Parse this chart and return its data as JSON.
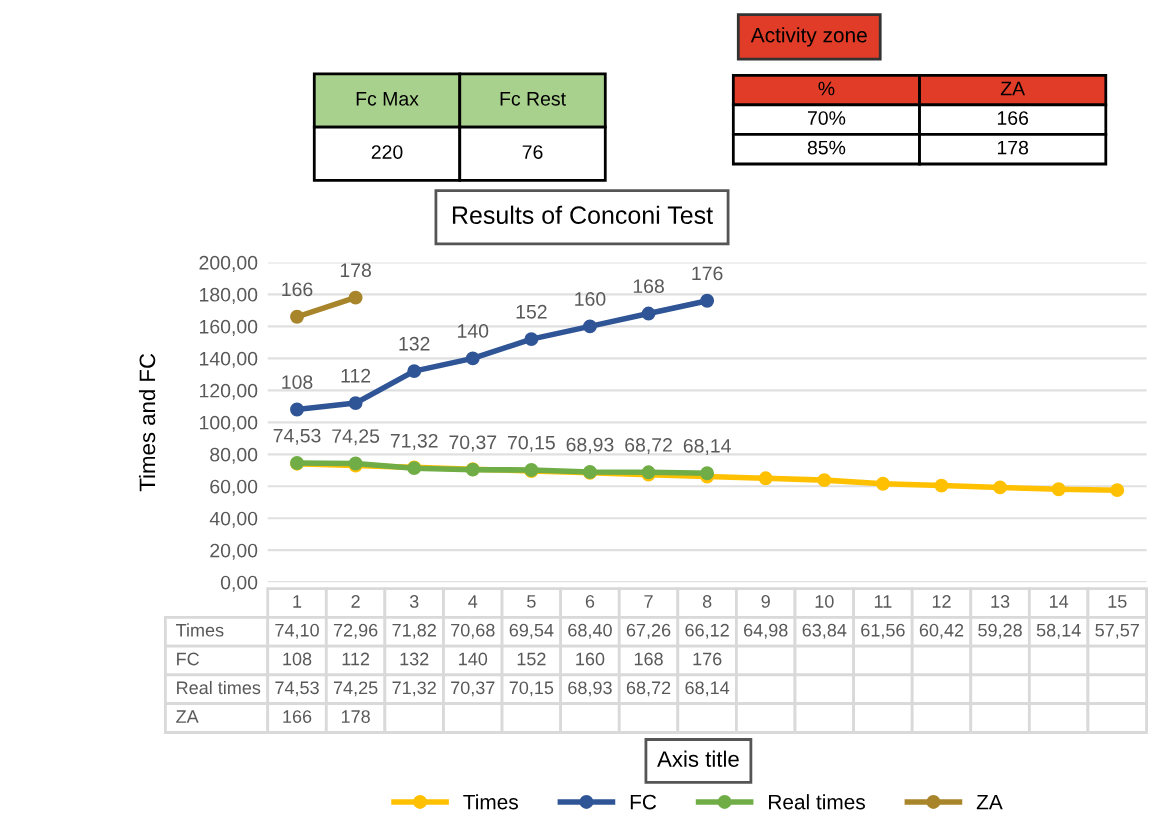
{
  "chart_data": {
    "type": "line",
    "title": "Results of Conconi Test",
    "ylabel": "Times and FC",
    "categories": [
      "1",
      "2",
      "3",
      "4",
      "5",
      "6",
      "7",
      "8",
      "9",
      "10",
      "11",
      "12",
      "13",
      "14",
      "15"
    ],
    "series": [
      {
        "name": "Times",
        "color": "#ffc000",
        "values": [
          74.1,
          72.96,
          71.82,
          70.68,
          69.54,
          68.4,
          67.26,
          66.12,
          64.98,
          63.84,
          61.56,
          60.42,
          59.28,
          58.14,
          57.57
        ],
        "value_labels": [
          "74,10",
          "72,96",
          "71,82",
          "70,68",
          "69,54",
          "68,40",
          "67,26",
          "66,12",
          "64,98",
          "63,84",
          "61,56",
          "60,42",
          "59,28",
          "58,14",
          "57,57"
        ]
      },
      {
        "name": "FC",
        "color": "#2f5597",
        "values": [
          108,
          112,
          132,
          140,
          152,
          160,
          168,
          176,
          null,
          null,
          null,
          null,
          null,
          null,
          null
        ],
        "value_labels": [
          "108",
          "112",
          "132",
          "140",
          "152",
          "160",
          "168",
          "176",
          null,
          null,
          null,
          null,
          null,
          null,
          null
        ]
      },
      {
        "name": "Real times",
        "color": "#70ad47",
        "values": [
          74.53,
          74.25,
          71.32,
          70.37,
          70.15,
          68.93,
          68.72,
          68.14,
          null,
          null,
          null,
          null,
          null,
          null,
          null
        ],
        "value_labels": [
          "74,53",
          "74,25",
          "71,32",
          "70,37",
          "70,15",
          "68,93",
          "68,72",
          "68,14",
          null,
          null,
          null,
          null,
          null,
          null,
          null
        ]
      },
      {
        "name": "ZA",
        "color": "#a8852a",
        "values": [
          166,
          178,
          null,
          null,
          null,
          null,
          null,
          null,
          null,
          null,
          null,
          null,
          null,
          null,
          null
        ],
        "value_labels": [
          "166",
          "178",
          null,
          null,
          null,
          null,
          null,
          null,
          null,
          null,
          null,
          null,
          null,
          null,
          null
        ]
      }
    ],
    "ylim": [
      0,
      200
    ],
    "yticks": [
      {
        "value": 0,
        "label": "0,00"
      },
      {
        "value": 20,
        "label": "20,00"
      },
      {
        "value": 40,
        "label": "40,00"
      },
      {
        "value": 60,
        "label": "60,00"
      },
      {
        "value": 80,
        "label": "80,00"
      },
      {
        "value": 100,
        "label": "100,00"
      },
      {
        "value": 120,
        "label": "120,00"
      },
      {
        "value": 140,
        "label": "140,00"
      },
      {
        "value": 160,
        "label": "160,00"
      },
      {
        "value": 180,
        "label": "180,00"
      },
      {
        "value": 200,
        "label": "200,00"
      }
    ],
    "grid": "y",
    "legend": "bottom",
    "marker": "circle",
    "line_style": "solid",
    "annotations": [
      "Axis title",
      "Fc Max",
      "Fc Rest",
      "220",
      "76",
      "Activity zone",
      "%",
      "ZA",
      "70%",
      "166",
      "85%",
      "178"
    ]
  }
}
